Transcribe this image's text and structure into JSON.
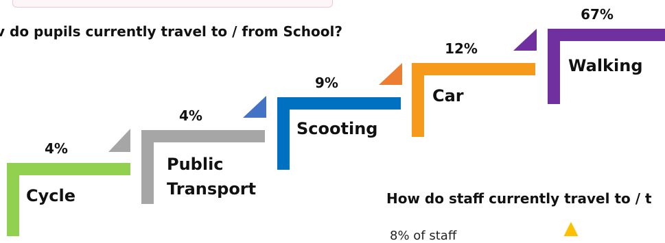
{
  "title": "v do pupils currently travel to / from School?",
  "staff_question": "How do staff currently travel to / t",
  "staff_note": "8% of staff",
  "chart_data": {
    "type": "bar",
    "title": "v do pupils currently travel to / from School?",
    "categories": [
      "Cycle",
      "Public Transport",
      "Scooting",
      "Car",
      "Walking"
    ],
    "values": [
      4,
      4,
      9,
      12,
      67
    ],
    "value_labels": [
      "4%",
      "4%",
      "9%",
      "12%",
      "67%"
    ],
    "colors": [
      "#92d050",
      "#a6a6a6",
      "#0070c0",
      "#f59a1b",
      "#7030a0"
    ],
    "triangle_colors": [
      "#a6a6a6",
      "#4472c4",
      "#ed7d31",
      "#7030a0"
    ],
    "accent_triangle": "#ffc000",
    "legend": "none",
    "grid": false
  }
}
